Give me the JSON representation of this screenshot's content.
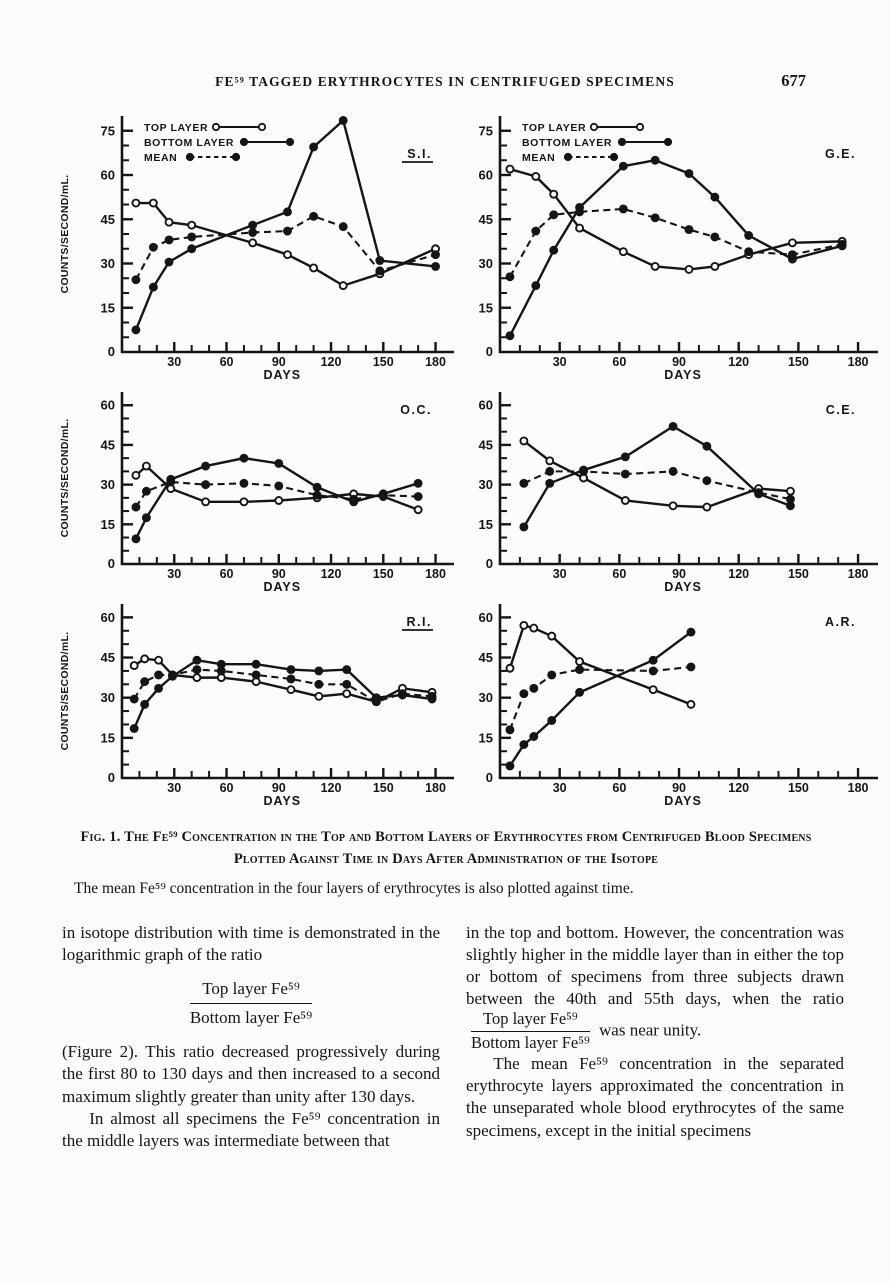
{
  "header": {
    "title": "FE⁵⁹ TAGGED ERYTHROCYTES IN CENTRIFUGED SPECIMENS",
    "page_number": "677"
  },
  "figure": {
    "legend_labels": [
      "TOP LAYER",
      "BOTTOM LAYER",
      "MEAN"
    ],
    "ylabel": "COUNTS/SECOND/mL.",
    "xlabel": "DAYS",
    "panel_labels": [
      "S.I.",
      "G.E.",
      "O.C.",
      "C.E.",
      "R.I.",
      "A.R."
    ]
  },
  "chart_data": [
    {
      "type": "line",
      "label": "S.I.",
      "label_underline": true,
      "legend": true,
      "xlabel": "DAYS",
      "ylabel": "COUNTS/SECOND/mL.",
      "xlim": [
        0,
        186
      ],
      "ylim": [
        0,
        80
      ],
      "xticks": [
        30,
        60,
        90,
        120,
        150,
        180
      ],
      "yticks": [
        15,
        30,
        45,
        60,
        75
      ],
      "x": [
        8,
        18,
        27,
        40,
        75,
        95,
        110,
        127,
        148,
        180
      ],
      "series": [
        {
          "name": "TOP LAYER",
          "marker": "open",
          "line": "solid",
          "y": [
            50.5,
            50.5,
            44,
            43,
            37,
            33,
            28.5,
            22.5,
            26.5,
            35
          ]
        },
        {
          "name": "BOTTOM LAYER",
          "marker": "filled",
          "line": "solid",
          "y": [
            7.5,
            22,
            30.5,
            35,
            43,
            47.5,
            69.5,
            78.5,
            31,
            29
          ]
        },
        {
          "name": "MEAN",
          "marker": "filled",
          "line": "dashed",
          "y": [
            24.5,
            35.5,
            38,
            39,
            40.5,
            41,
            46,
            42.5,
            27.5,
            33
          ]
        }
      ]
    },
    {
      "type": "line",
      "label": "G.E.",
      "label_underline": false,
      "legend": true,
      "xlabel": "DAYS",
      "ylabel": "",
      "xlim": [
        0,
        186
      ],
      "ylim": [
        0,
        80
      ],
      "xticks": [
        30,
        60,
        90,
        120,
        150,
        180
      ],
      "yticks": [
        15,
        30,
        45,
        60,
        75
      ],
      "x": [
        5,
        18,
        27,
        40,
        62,
        78,
        95,
        108,
        125,
        147,
        172
      ],
      "series": [
        {
          "name": "TOP LAYER",
          "marker": "open",
          "line": "solid",
          "y": [
            62,
            59.5,
            53.5,
            42,
            34,
            29,
            28,
            29,
            33,
            37,
            37.5
          ]
        },
        {
          "name": "BOTTOM LAYER",
          "marker": "filled",
          "line": "solid",
          "y": [
            5.5,
            22.5,
            34.5,
            49,
            63,
            65,
            60.5,
            52.5,
            39.5,
            31.5,
            36
          ]
        },
        {
          "name": "MEAN",
          "marker": "filled",
          "line": "dashed",
          "y": [
            25.5,
            41,
            46.5,
            47.5,
            48.5,
            45.5,
            41.5,
            39,
            34,
            33,
            36.5
          ]
        }
      ]
    },
    {
      "type": "line",
      "label": "O.C.",
      "label_underline": false,
      "legend": false,
      "xlabel": "DAYS",
      "ylabel": "COUNTS/SECOND/mL.",
      "xlim": [
        0,
        186
      ],
      "ylim": [
        0,
        65
      ],
      "xticks": [
        30,
        60,
        90,
        120,
        150,
        180
      ],
      "yticks": [
        15,
        30,
        45,
        60
      ],
      "x": [
        8,
        14,
        28,
        48,
        70,
        90,
        112,
        133,
        150,
        170
      ],
      "series": [
        {
          "name": "TOP LAYER",
          "marker": "open",
          "line": "solid",
          "y": [
            33.5,
            37,
            28.5,
            23.5,
            23.5,
            24,
            25,
            26.5,
            25.5,
            20.5
          ]
        },
        {
          "name": "BOTTOM LAYER",
          "marker": "filled",
          "line": "solid",
          "y": [
            9.5,
            17.5,
            32,
            37,
            40,
            38,
            29,
            23.5,
            26.5,
            30.5
          ]
        },
        {
          "name": "MEAN",
          "marker": "filled",
          "line": "dashed",
          "y": [
            21.5,
            27.5,
            31,
            30,
            30.5,
            29.5,
            26,
            24.5,
            26,
            25.5
          ]
        }
      ]
    },
    {
      "type": "line",
      "label": "C.E.",
      "label_underline": false,
      "legend": false,
      "xlabel": "DAYS",
      "ylabel": "",
      "xlim": [
        0,
        186
      ],
      "ylim": [
        0,
        65
      ],
      "xticks": [
        30,
        60,
        90,
        120,
        150,
        180
      ],
      "yticks": [
        15,
        30,
        45,
        60
      ],
      "x": [
        12,
        25,
        42,
        63,
        87,
        104,
        130,
        146
      ],
      "series": [
        {
          "name": "TOP LAYER",
          "marker": "open",
          "line": "solid",
          "y": [
            46.5,
            39,
            32.5,
            24,
            22,
            21.5,
            28.5,
            27.5
          ]
        },
        {
          "name": "BOTTOM LAYER",
          "marker": "filled",
          "line": "solid",
          "y": [
            14,
            30.5,
            35.5,
            40.5,
            52,
            44.5,
            26.5,
            22
          ]
        },
        {
          "name": "MEAN",
          "marker": "filled",
          "line": "dashed",
          "y": [
            30.5,
            35,
            35,
            34,
            35,
            31.5,
            27,
            24.5
          ]
        }
      ]
    },
    {
      "type": "line",
      "label": "R.I.",
      "label_underline": true,
      "legend": false,
      "xlabel": "DAYS",
      "ylabel": "COUNTS/SECOND/mL.",
      "xlim": [
        0,
        186
      ],
      "ylim": [
        0,
        65
      ],
      "xticks": [
        30,
        60,
        90,
        120,
        150,
        180
      ],
      "yticks": [
        15,
        30,
        45,
        60
      ],
      "x": [
        7,
        13,
        21,
        29,
        43,
        57,
        77,
        97,
        113,
        129,
        146,
        161,
        178
      ],
      "series": [
        {
          "name": "TOP LAYER",
          "marker": "open",
          "line": "solid",
          "y": [
            42,
            44.5,
            44,
            38.5,
            37.5,
            37.5,
            36,
            33,
            30.5,
            31.5,
            28.5,
            33.5,
            32
          ]
        },
        {
          "name": "BOTTOM LAYER",
          "marker": "filled",
          "line": "solid",
          "y": [
            18.5,
            27.5,
            33.5,
            38,
            44,
            42.5,
            42.5,
            40.5,
            40,
            40.5,
            30,
            31,
            29.5
          ]
        },
        {
          "name": "MEAN",
          "marker": "filled",
          "line": "dashed",
          "y": [
            29.5,
            36,
            38.5,
            38.5,
            40.5,
            40,
            38.5,
            37,
            35,
            35,
            28.5,
            31.5,
            30.5
          ]
        }
      ]
    },
    {
      "type": "line",
      "label": "A.R.",
      "label_underline": false,
      "legend": false,
      "xlabel": "DAYS",
      "ylabel": "",
      "xlim": [
        0,
        186
      ],
      "ylim": [
        0,
        65
      ],
      "xticks": [
        30,
        60,
        90,
        120,
        150,
        180
      ],
      "yticks": [
        15,
        30,
        45,
        60
      ],
      "x": [
        5,
        12,
        17,
        26,
        40,
        77,
        96
      ],
      "series": [
        {
          "name": "TOP LAYER",
          "marker": "open",
          "line": "solid",
          "y": [
            41,
            57,
            56,
            53,
            43.5,
            33,
            27.5
          ]
        },
        {
          "name": "BOTTOM LAYER",
          "marker": "filled",
          "line": "solid",
          "y": [
            4.5,
            12.5,
            15.5,
            21.5,
            32,
            44,
            54.5
          ]
        },
        {
          "name": "MEAN",
          "marker": "filled",
          "line": "dashed",
          "y": [
            18,
            31.5,
            33.5,
            38.5,
            40.5,
            40,
            41.5
          ]
        }
      ]
    }
  ],
  "caption": {
    "main": "Fig. 1.  The Fe⁵⁹ Concentration in the Top and Bottom Layers of Erythrocytes from Centrifuged Blood Specimens Plotted Against Time in Days After Administration of the Isotope",
    "sub": "The mean Fe⁵⁹ concentration in the four layers of erythrocytes is also plotted against time."
  },
  "body": {
    "fraction": {
      "numerator": "Top layer Fe⁵⁹",
      "denominator": "Bottom layer Fe⁵⁹"
    },
    "left": {
      "p1": "in isotope distribution with time is demonstrated in the logarithmic graph of the ratio",
      "p2": "(Figure 2).  This ratio decreased progressively during the first 80 to 130 days and then increased to a second maximum slightly greater than unity after 130 days.",
      "p3": "In almost all specimens the Fe⁵⁹ concentration in the middle layers was intermediate between that"
    },
    "right": {
      "p1_before": "in the top and bottom.  However, the concentration was slightly higher in the middle layer than in either the top or bottom of specimens from three subjects drawn between the 40th and 55th days, when the ratio",
      "p1_after": "was near unity.",
      "p2": "The mean Fe⁵⁹ concentration in the separated erythrocyte layers approximated the concentration in the unseparated whole blood erythrocytes of the same specimens, except in the initial specimens"
    }
  }
}
